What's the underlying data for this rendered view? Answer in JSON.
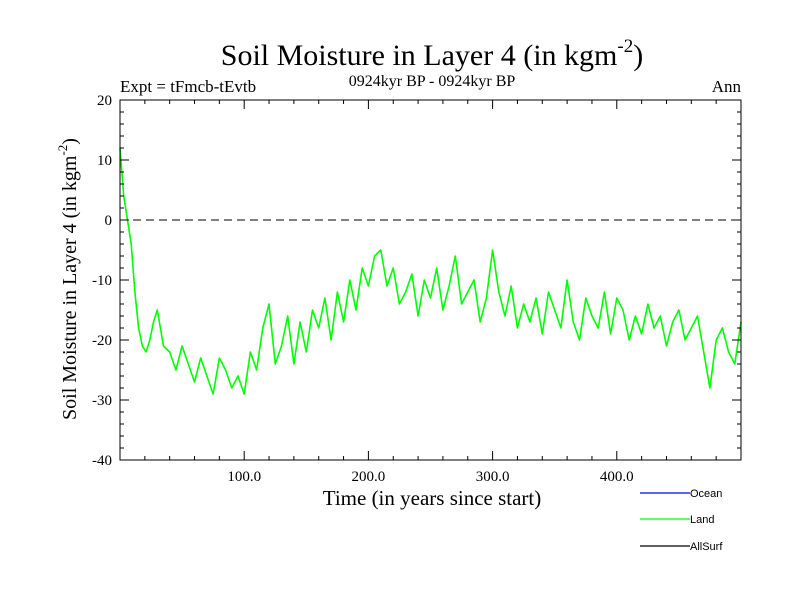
{
  "chart_data": {
    "type": "line",
    "title": "Soil Moisture in Layer 4 (in kgm",
    "title_sup": "-2",
    "title_close": ")",
    "subtitle": "0924kyr BP - 0924kyr BP",
    "experiment": "Expt = tFmcb-tEvtb",
    "season": "Ann",
    "xlabel": "Time (in years since start)",
    "ylabel": "Soil Moisture in Layer 4 (in kgm",
    "ylabel_sup": "-2",
    "ylabel_close": ")",
    "xlim": [
      0,
      500
    ],
    "ylim": [
      -40,
      20
    ],
    "x_ticks": [
      100,
      200,
      300,
      400
    ],
    "x_tick_labels": [
      "100.0",
      "200.0",
      "300.0",
      "400.0"
    ],
    "y_ticks": [
      -40,
      -30,
      -20,
      -10,
      0,
      10,
      20
    ],
    "y_tick_labels": [
      "-40",
      "-30",
      "-20",
      "-10",
      "0",
      "10",
      "20"
    ],
    "reference_line": {
      "y": 0,
      "style": "dashed"
    },
    "legend_position": "bottom-right",
    "series": [
      {
        "name": "Ocean",
        "color": "#0000ff",
        "x": [],
        "values": []
      },
      {
        "name": "Land",
        "color": "#00ff00",
        "x": [
          0,
          3,
          6,
          9,
          12,
          15,
          18,
          21,
          24,
          27,
          30,
          35,
          40,
          45,
          50,
          55,
          60,
          65,
          70,
          75,
          80,
          85,
          90,
          95,
          100,
          105,
          110,
          115,
          120,
          125,
          130,
          135,
          140,
          145,
          150,
          155,
          160,
          165,
          170,
          175,
          180,
          185,
          190,
          195,
          200,
          205,
          210,
          215,
          220,
          225,
          230,
          235,
          240,
          245,
          250,
          255,
          260,
          265,
          270,
          275,
          280,
          285,
          290,
          295,
          300,
          305,
          310,
          315,
          320,
          325,
          330,
          335,
          340,
          345,
          350,
          355,
          360,
          365,
          370,
          375,
          380,
          385,
          390,
          395,
          400,
          405,
          410,
          415,
          420,
          425,
          430,
          435,
          440,
          445,
          450,
          455,
          460,
          465,
          470,
          475,
          480,
          485,
          490,
          495,
          500
        ],
        "values": [
          12,
          4,
          0,
          -4,
          -12,
          -18,
          -21,
          -22,
          -20,
          -17,
          -15,
          -21,
          -22,
          -25,
          -21,
          -24,
          -27,
          -23,
          -26,
          -29,
          -23,
          -25,
          -28,
          -26,
          -29,
          -22,
          -25,
          -18,
          -14,
          -24,
          -21,
          -16,
          -24,
          -17,
          -22,
          -15,
          -18,
          -13,
          -20,
          -12,
          -17,
          -10,
          -15,
          -8,
          -11,
          -6,
          -5,
          -11,
          -8,
          -14,
          -12,
          -9,
          -16,
          -10,
          -13,
          -8,
          -15,
          -11,
          -6,
          -14,
          -12,
          -10,
          -17,
          -13,
          -5,
          -12,
          -16,
          -11,
          -18,
          -14,
          -17,
          -13,
          -19,
          -12,
          -15,
          -18,
          -10,
          -17,
          -20,
          -13,
          -16,
          -18,
          -12,
          -19,
          -13,
          -15,
          -20,
          -16,
          -19,
          -14,
          -18,
          -16,
          -21,
          -17,
          -15,
          -20,
          -18,
          -16,
          -22,
          -28,
          -20,
          -18,
          -22,
          -24,
          -17
        ]
      },
      {
        "name": "AllSurf",
        "color": "#000000",
        "x": [],
        "values": []
      }
    ]
  }
}
